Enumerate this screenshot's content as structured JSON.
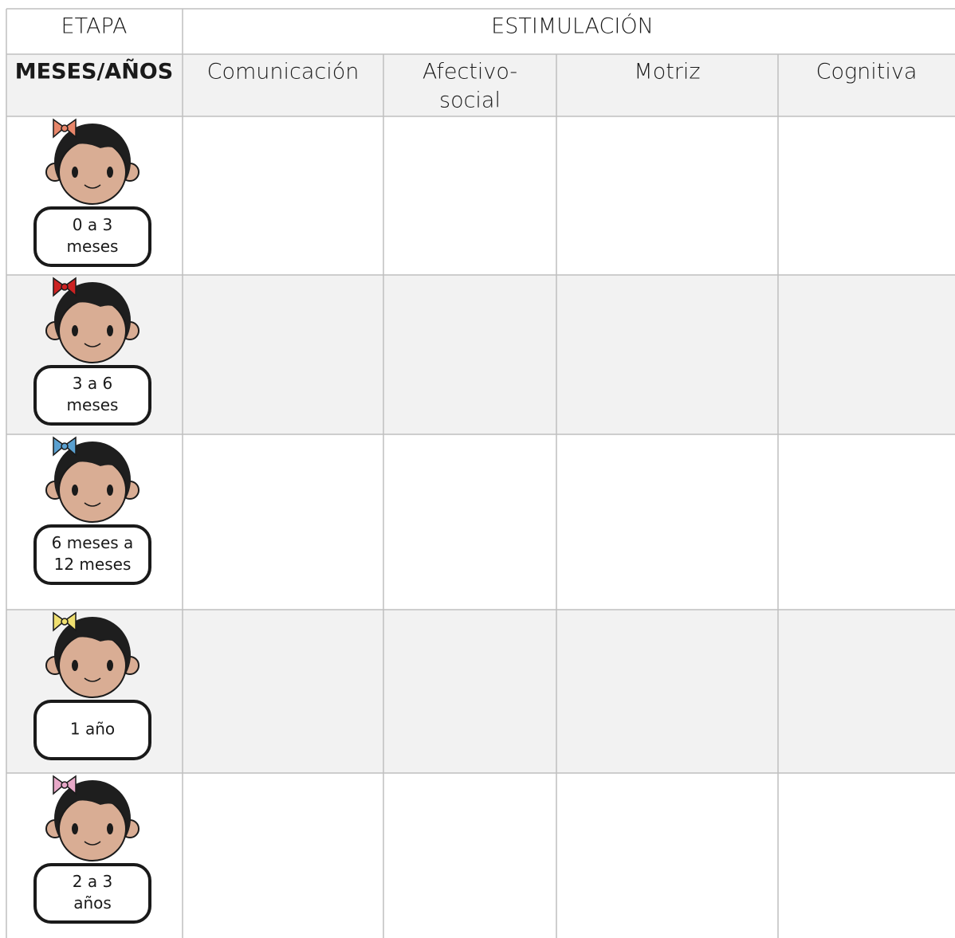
{
  "header": {
    "stage": "ETAPA",
    "stimulation": "ESTIMULACIÓN"
  },
  "columns": {
    "age": "MESES/AÑOS",
    "areas": [
      [
        "Comunicación"
      ],
      [
        "Afectivo-",
        "social"
      ],
      [
        "Motriz"
      ],
      [
        "Cognitiva"
      ]
    ]
  },
  "rows": [
    {
      "label": [
        "0 a 3",
        "meses"
      ]
    },
    {
      "label": [
        "3 a 6",
        "meses"
      ]
    },
    {
      "label": [
        "6 meses a",
        "12 meses"
      ]
    },
    {
      "label": [
        "1 año"
      ]
    },
    {
      "label": [
        "2 a 3",
        "años"
      ]
    }
  ]
}
